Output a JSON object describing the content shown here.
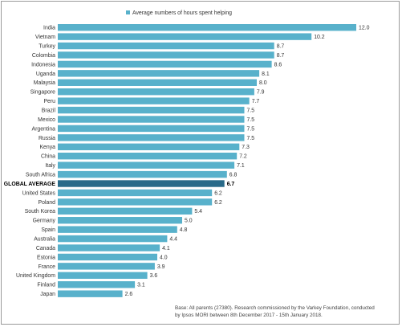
{
  "chart_data": {
    "type": "bar",
    "orientation": "horizontal",
    "categories": [
      "India",
      "Vietnam",
      "Turkey",
      "Colombia",
      "Indonesia",
      "Uganda",
      "Malaysia",
      "Singapore",
      "Peru",
      "Brazil",
      "Mexico",
      "Argentina",
      "Russia",
      "Kenya",
      "China",
      "Italy",
      "South Africa",
      "GLOBAL AVERAGE",
      "United States",
      "Poland",
      "South Korea",
      "Germany",
      "Spain",
      "Australia",
      "Canada",
      "Estonia",
      "France",
      "United Kingdom",
      "Finland",
      "Japan"
    ],
    "series": [
      {
        "name": "Average numbers of hours spent helping",
        "values": [
          12.0,
          10.2,
          8.7,
          8.7,
          8.6,
          8.1,
          8.0,
          7.9,
          7.7,
          7.5,
          7.5,
          7.5,
          7.5,
          7.3,
          7.2,
          7.1,
          6.8,
          6.7,
          6.2,
          6.2,
          5.4,
          5.0,
          4.8,
          4.4,
          4.1,
          4.0,
          3.9,
          3.6,
          3.1,
          2.6
        ]
      }
    ],
    "highlight_category": "GLOBAL AVERAGE",
    "xlim": [
      0,
      13
    ],
    "legend_position": "top",
    "grid": false,
    "title": "",
    "xlabel": "",
    "ylabel": ""
  },
  "colors": {
    "bar": "#58b1cb",
    "highlight_bar": "#286a89",
    "legend_swatch": "#58b1cb"
  },
  "footnote": {
    "line1": "Base: All parents (27380). Research commissioned by the Varkey Foundation, conducted",
    "line2": "by Ipsos MORI between 8th December 2017 - 15th January 2018."
  }
}
